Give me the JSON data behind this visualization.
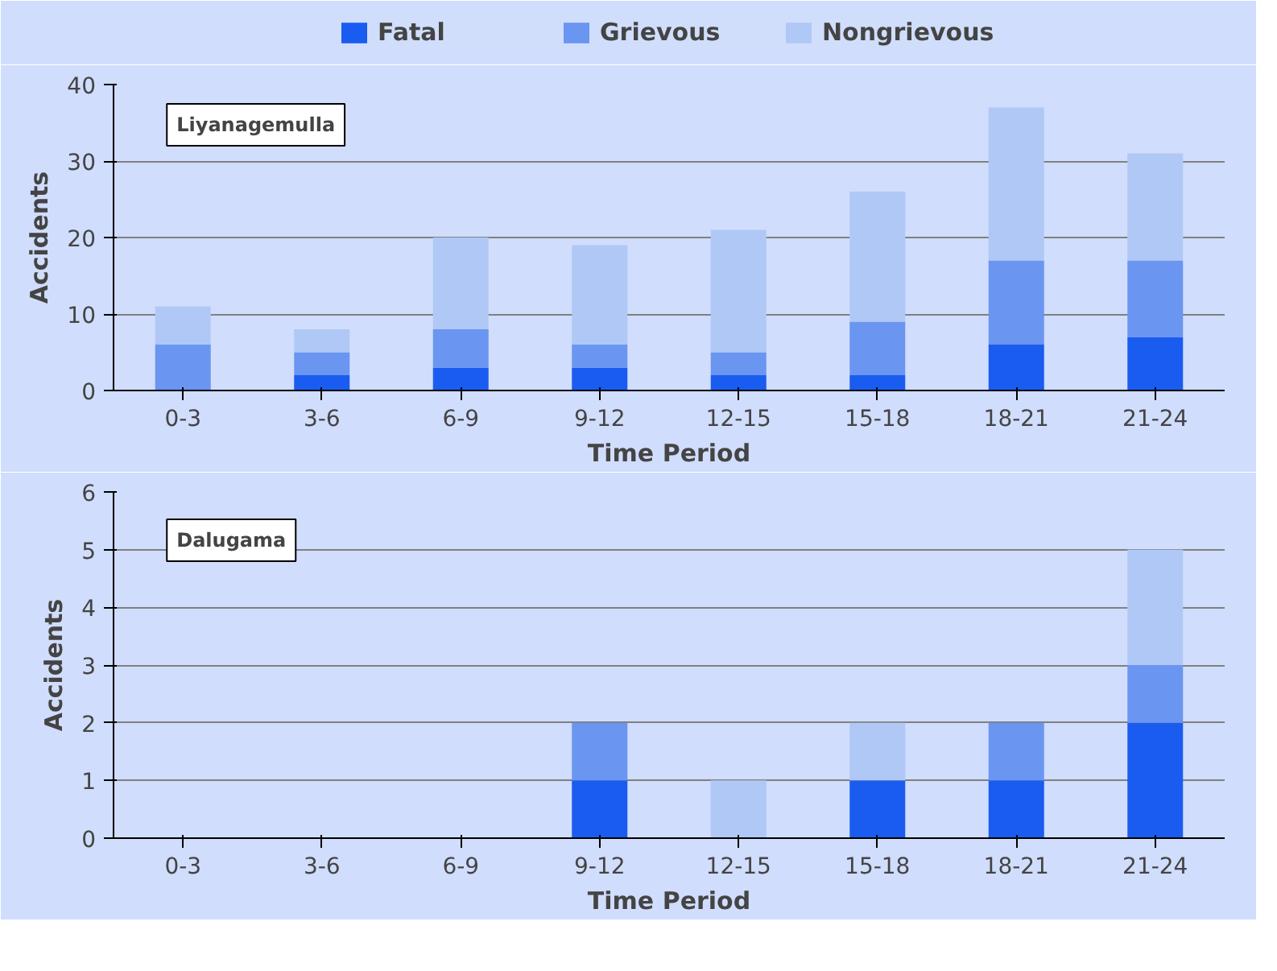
{
  "chart_data": [
    {
      "type": "bar",
      "stacked": true,
      "categories": [
        "0-3",
        "3-6",
        "6-9",
        "9-12",
        "12-15",
        "15-18",
        "18-21",
        "21-24"
      ],
      "xlabel": "Time Period",
      "ylabel": "Accidents",
      "ylim": [
        0,
        40
      ],
      "yticks": [
        0,
        10,
        20,
        30,
        40
      ],
      "grid": "y",
      "legend": "top",
      "annotations": [
        "Liyanagemulla"
      ],
      "series": [
        {
          "name": "Fatal",
          "color": "#1a5cf0",
          "values": [
            0,
            2,
            3,
            3,
            2,
            2,
            6,
            7
          ]
        },
        {
          "name": "Grievous",
          "color": "#6a95f0",
          "values": [
            6,
            3,
            5,
            3,
            3,
            7,
            11,
            10
          ]
        },
        {
          "name": "Nongrievous",
          "color": "#b0c8f5",
          "values": [
            5,
            3,
            12,
            13,
            16,
            17,
            20,
            14
          ]
        }
      ]
    },
    {
      "type": "bar",
      "stacked": true,
      "categories": [
        "0-3",
        "3-6",
        "6-9",
        "9-12",
        "12-15",
        "15-18",
        "18-21",
        "21-24"
      ],
      "xlabel": "Time Period",
      "ylabel": "Accidents",
      "ylim": [
        0,
        6
      ],
      "yticks": [
        0,
        1,
        2,
        3,
        4,
        5,
        6
      ],
      "grid": "y",
      "annotations": [
        "Dalugama"
      ],
      "series": [
        {
          "color": "#1a5cf0",
          "values": [
            0,
            0,
            0,
            1,
            0,
            1,
            1,
            2
          ]
        },
        {
          "color": "#6a95f0",
          "values": [
            0,
            0,
            0,
            1,
            0,
            0,
            1,
            1
          ]
        },
        {
          "color": "#b0c8f5",
          "values": [
            0,
            0,
            0,
            0,
            1,
            1,
            0,
            2
          ]
        }
      ]
    }
  ]
}
